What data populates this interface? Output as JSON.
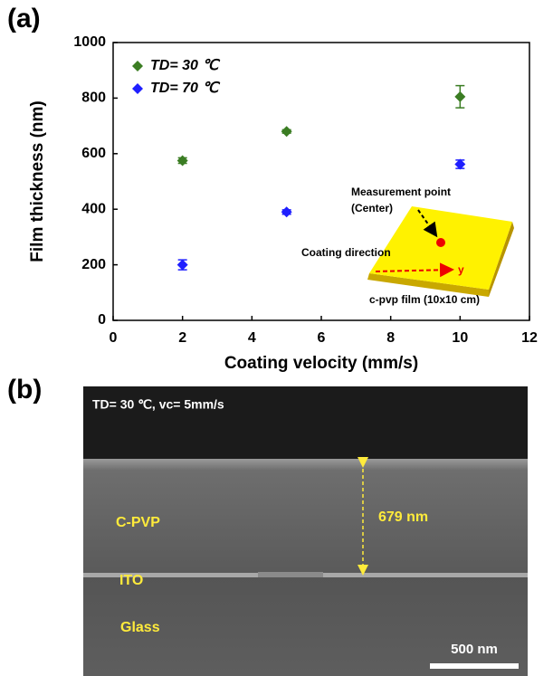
{
  "chart_data": {
    "type": "scatter",
    "x_label": "Coating velocity (mm/s)",
    "y_label": "Film thickness (nm)",
    "xlim": [
      0,
      12
    ],
    "xticks": [
      0,
      2,
      4,
      6,
      8,
      10,
      12
    ],
    "ylim": [
      0,
      1000
    ],
    "yticks": [
      0,
      200,
      400,
      600,
      800,
      1000
    ],
    "x": [
      2,
      5,
      10
    ],
    "series": [
      {
        "name": "TD= 30 ℃",
        "color": "#3b7d23",
        "values": [
          575,
          680,
          805
        ],
        "errors": [
          10,
          6,
          40
        ]
      },
      {
        "name": "TD= 70 ℃",
        "color": "#1f1fff",
        "values": [
          200,
          390,
          562
        ],
        "errors": [
          18,
          8,
          15
        ]
      }
    ],
    "legend": "upper left",
    "annotations": [
      "Measurement point",
      "(Center)",
      "Coating direction",
      "y",
      "c-pvp film (10x10 cm)"
    ]
  },
  "panel_labels": [
    "(a)",
    "(b)"
  ],
  "sem_image": {
    "condition": "TD= 30 ℃, vc= 5mm/s",
    "thickness": "679 nm",
    "layers": [
      "C-PVP",
      "ITO",
      "Glass"
    ],
    "scale_bar": "500 nm"
  }
}
